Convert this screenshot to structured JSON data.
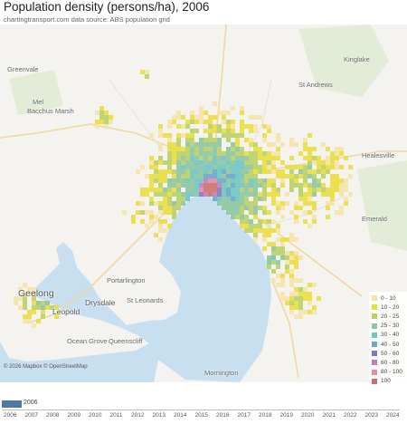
{
  "title": "Population density (persons/ha), 2006",
  "subtitle": "chartingtransport.com  data source: ABS population grid",
  "map": {
    "colors": {
      "water": "#c8dff0",
      "land": "#f4f3ef",
      "park": "#e3ecd6",
      "road_major": "#f2d7a1",
      "road_minor": "#e5e2db"
    },
    "places": [
      {
        "id": "greenvale",
        "label": "Greenvale"
      },
      {
        "id": "melton",
        "label": "Mel"
      },
      {
        "id": "bacchus-marsh",
        "label": "Bacchus Marsh"
      },
      {
        "id": "kinglake",
        "label": "Kinglake"
      },
      {
        "id": "st-andrews",
        "label": "St Andrews"
      },
      {
        "id": "healesville",
        "label": "Healesville"
      },
      {
        "id": "emerald",
        "label": "Emerald"
      },
      {
        "id": "portarlington",
        "label": "Portarlington"
      },
      {
        "id": "st-leonards",
        "label": "St Leonards"
      },
      {
        "id": "geelong",
        "label": "Geelong"
      },
      {
        "id": "drysdale",
        "label": "Drysdale"
      },
      {
        "id": "leopold",
        "label": "Leopold"
      },
      {
        "id": "ocean-grove",
        "label": "Ocean Grove"
      },
      {
        "id": "queenscliff",
        "label": "Queenscliff"
      },
      {
        "id": "mornington",
        "label": "Mornington"
      }
    ],
    "attribution": "© 2026 Mapbox © OpenStreetMap"
  },
  "legend": {
    "items": [
      {
        "label": "0 - 10",
        "color": "#f6e3a6"
      },
      {
        "label": "10 - 20",
        "color": "#e9de3f"
      },
      {
        "label": "20 - 25",
        "color": "#b9d167"
      },
      {
        "label": "25 - 30",
        "color": "#8cc5a0"
      },
      {
        "label": "30 - 40",
        "color": "#6fc4c4"
      },
      {
        "label": "40 - 50",
        "color": "#67a8cc"
      },
      {
        "label": "50 - 60",
        "color": "#8577be"
      },
      {
        "label": "60 - 80",
        "color": "#c27cc0"
      },
      {
        "label": "80 - 100",
        "color": "#e58ab0"
      },
      {
        "label": "100",
        "color": "#c9726a"
      }
    ]
  },
  "slider": {
    "selected": "2006",
    "years": [
      "2006",
      "2007",
      "2008",
      "2009",
      "2010",
      "2011",
      "2012",
      "2013",
      "2014",
      "2015",
      "2016",
      "2017",
      "2018",
      "2019",
      "2020",
      "2021",
      "2022",
      "2023",
      "2024"
    ]
  }
}
